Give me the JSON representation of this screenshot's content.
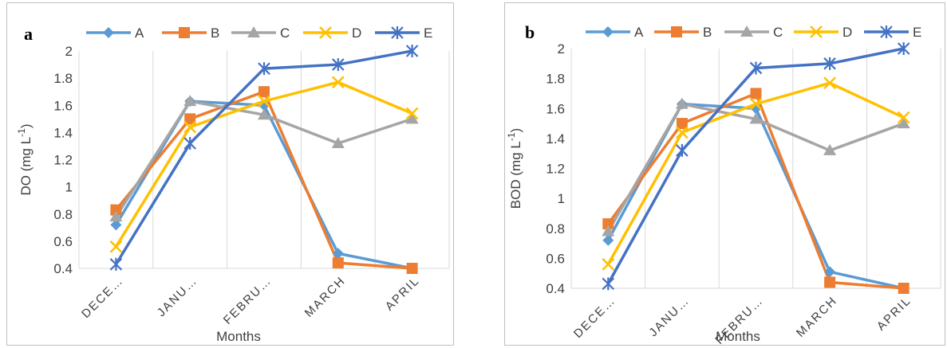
{
  "colors": {
    "A": "#5b9bd5",
    "B": "#ed7d31",
    "C": "#a5a5a5",
    "D": "#ffc000",
    "E": "#4472c4",
    "grid": "#d9d9d9",
    "text": "#404040"
  },
  "chart_data": [
    {
      "type": "line",
      "panel_label": "a",
      "title": "",
      "xlabel": "Months",
      "ylabel_main": "DO (mg L",
      "ylabel_sup": "-1",
      "ylabel_close": ")",
      "categories": [
        "DECE…",
        "JANU…",
        "FEBRU…",
        "MARCH",
        "APRIL"
      ],
      "ylim": [
        0.4,
        2
      ],
      "yticks": [
        "0.4",
        "0.6",
        "0.8",
        "1",
        "1.2",
        "1.4",
        "1.6",
        "1.8",
        "2"
      ],
      "grid": "vertical",
      "legend_position": "top",
      "series": [
        {
          "name": "A",
          "marker": "diamond",
          "values": [
            0.72,
            1.63,
            1.6,
            0.51,
            0.4
          ]
        },
        {
          "name": "B",
          "marker": "square",
          "values": [
            0.83,
            1.5,
            1.7,
            0.44,
            0.4
          ]
        },
        {
          "name": "C",
          "marker": "triangle",
          "values": [
            0.78,
            1.63,
            1.53,
            1.32,
            1.5
          ]
        },
        {
          "name": "D",
          "marker": "x",
          "values": [
            0.56,
            1.44,
            1.63,
            1.77,
            1.54
          ]
        },
        {
          "name": "E",
          "marker": "star",
          "values": [
            0.43,
            1.32,
            1.87,
            1.9,
            2.0
          ]
        }
      ]
    },
    {
      "type": "line",
      "panel_label": "b",
      "title": "",
      "xlabel": "Months",
      "ylabel_main": "BOD (mg L",
      "ylabel_sup": "-1",
      "ylabel_close": ")",
      "categories": [
        "DECE…",
        "JANU…",
        "FEBRU…",
        "MARCH",
        "APRIL"
      ],
      "ylim": [
        0.4,
        2
      ],
      "yticks": [
        "0.4",
        "0.6",
        "0.8",
        "1",
        "1.2",
        "1.4",
        "1.6",
        "1.8",
        "2"
      ],
      "grid": "vertical",
      "legend_position": "top",
      "series": [
        {
          "name": "A",
          "marker": "diamond",
          "values": [
            0.72,
            1.63,
            1.6,
            0.51,
            0.4
          ]
        },
        {
          "name": "B",
          "marker": "square",
          "values": [
            0.83,
            1.5,
            1.7,
            0.44,
            0.4
          ]
        },
        {
          "name": "C",
          "marker": "triangle",
          "values": [
            0.78,
            1.63,
            1.53,
            1.32,
            1.5
          ]
        },
        {
          "name": "D",
          "marker": "x",
          "values": [
            0.56,
            1.44,
            1.63,
            1.77,
            1.54
          ]
        },
        {
          "name": "E",
          "marker": "star",
          "values": [
            0.43,
            1.32,
            1.87,
            1.9,
            2.0
          ]
        }
      ]
    }
  ]
}
